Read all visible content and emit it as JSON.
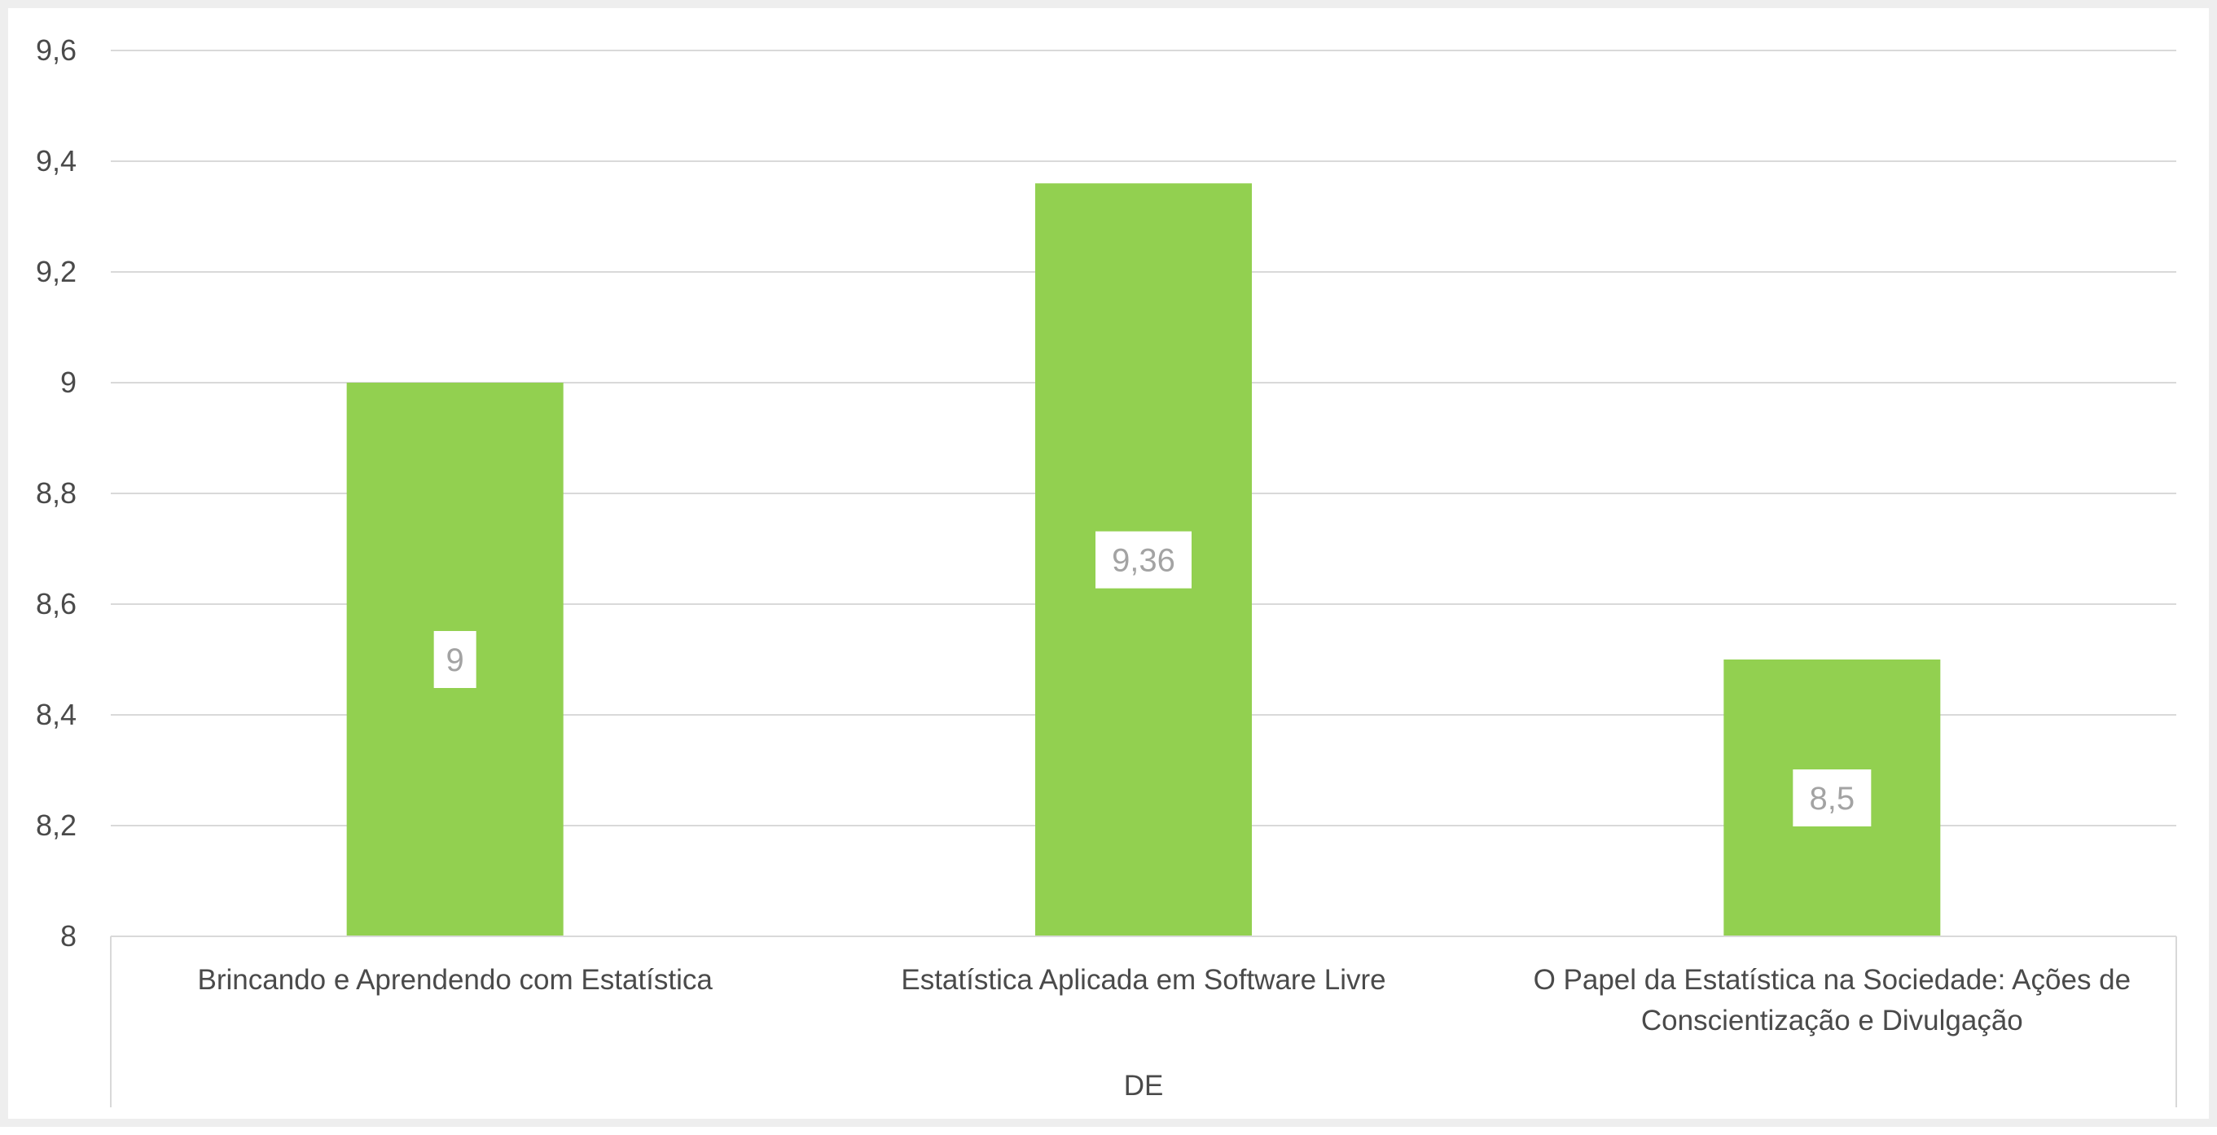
{
  "chart_data": {
    "type": "bar",
    "categories": [
      [
        "Brincando e Aprendendo com Estatística"
      ],
      [
        "Estatística Aplicada em Software Livre"
      ],
      [
        "O Papel da Estatística na Sociedade: Ações de",
        "Conscientização e Divulgação"
      ]
    ],
    "values": [
      9,
      9.36,
      8.5
    ],
    "data_labels": [
      "9",
      "9,36",
      "8,5"
    ],
    "group_label": "DE",
    "ylim": [
      8,
      9.6
    ],
    "yticks": [
      8,
      8.2,
      8.4,
      8.6,
      8.8,
      9,
      9.2,
      9.4,
      9.6
    ],
    "ytick_labels": [
      "8",
      "8,2",
      "8,4",
      "8,6",
      "8,8",
      "9",
      "9,2",
      "9,4",
      "9,6"
    ],
    "bar_color": "#92d050",
    "grid": true,
    "title": "",
    "xlabel": "",
    "ylabel": ""
  }
}
